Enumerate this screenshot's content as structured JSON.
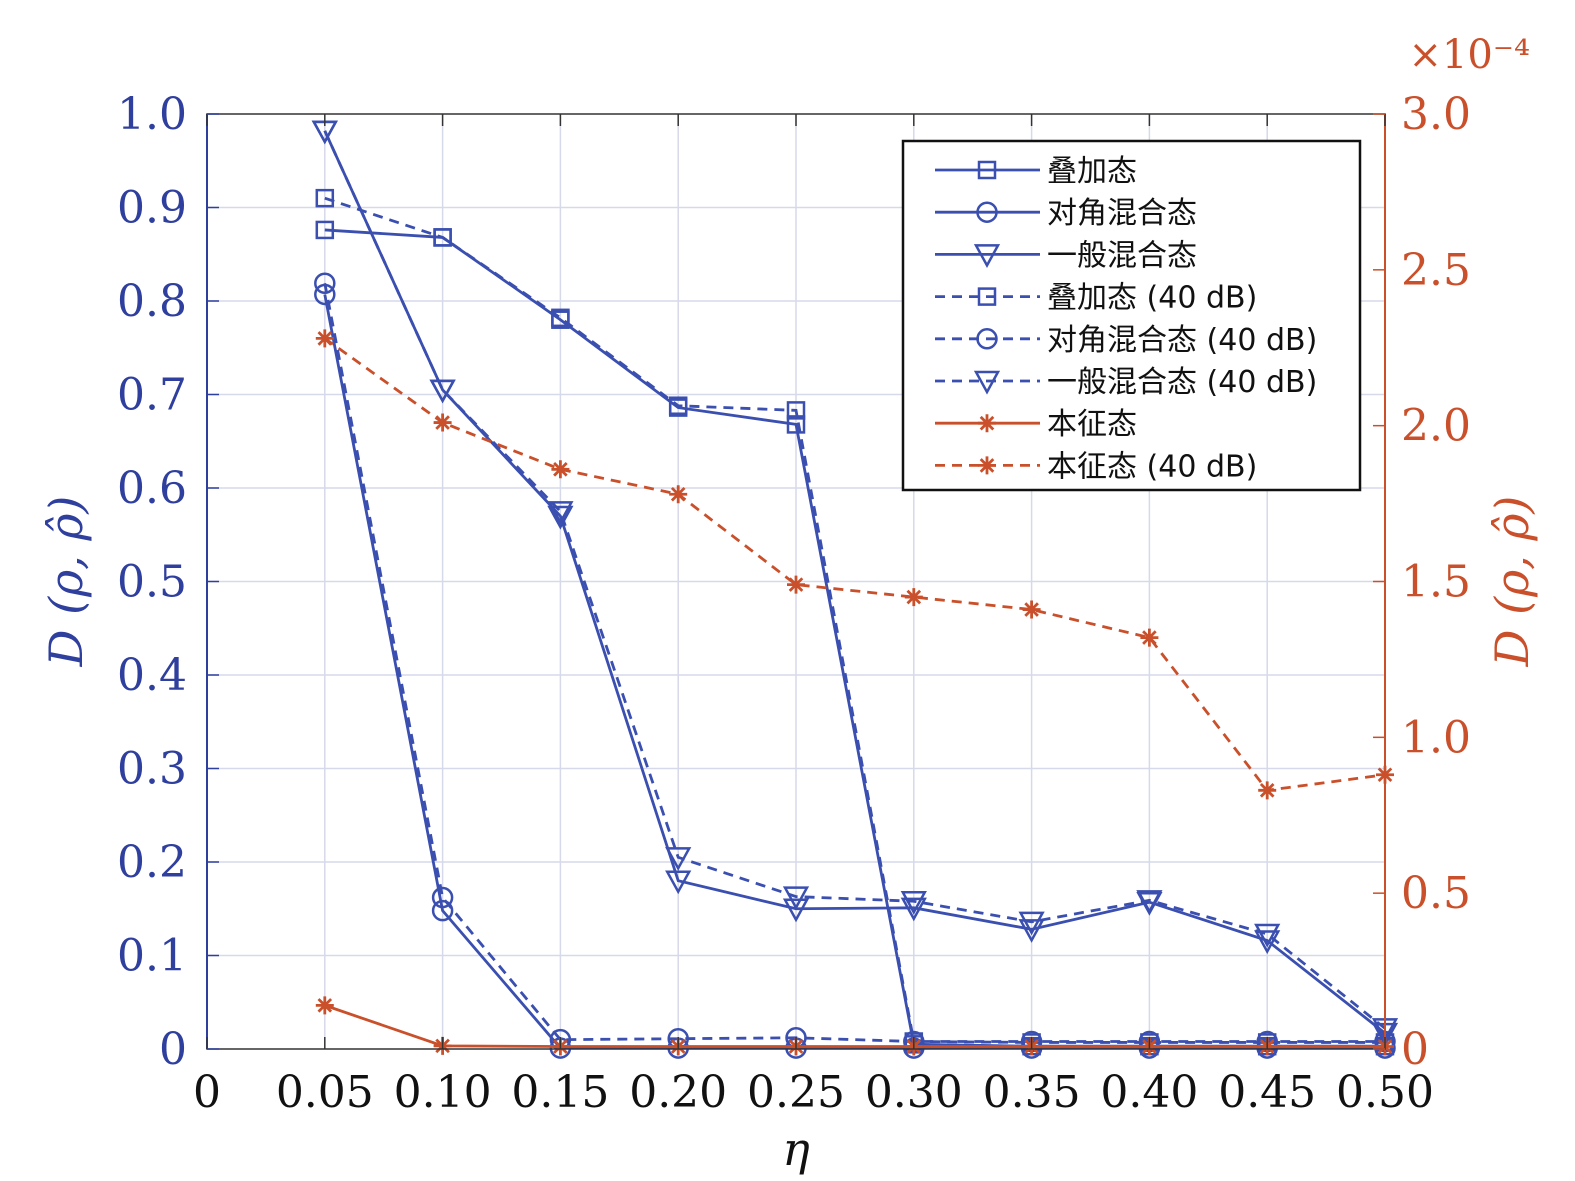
{
  "chart_data": {
    "type": "line",
    "xlabel": "η",
    "ylabel_left": "D (ρ, ρ̂)",
    "ylabel_right": "D (ρ, ρ̂)",
    "right_axis_exponent": "×10⁻⁴",
    "xlim": [
      0,
      0.5
    ],
    "ylim_left": [
      0,
      1.0
    ],
    "ylim_right": [
      0,
      3.0
    ],
    "x_ticks": [
      "0",
      "0.05",
      "0.10",
      "0.15",
      "0.20",
      "0.25",
      "0.30",
      "0.35",
      "0.40",
      "0.45",
      "0.50"
    ],
    "y_ticks_left": [
      "0",
      "0.1",
      "0.2",
      "0.3",
      "0.4",
      "0.5",
      "0.6",
      "0.7",
      "0.8",
      "0.9",
      "1.0"
    ],
    "y_ticks_right": [
      "0",
      "0.5",
      "1.0",
      "1.5",
      "2.0",
      "2.5",
      "3.0"
    ],
    "grid": true,
    "legend_position": "top-right",
    "x": [
      0.05,
      0.1,
      0.15,
      0.2,
      0.25,
      0.3,
      0.35,
      0.4,
      0.45,
      0.5
    ],
    "series": [
      {
        "name": "叠加态",
        "axis": "left",
        "marker": "square",
        "dash": "solid",
        "color": "#3a4fb0",
        "values": [
          0.876,
          0.868,
          0.78,
          0.686,
          0.668,
          0.005,
          0.003,
          0.003,
          0.003,
          0.003
        ]
      },
      {
        "name": "对角混合态",
        "axis": "left",
        "marker": "circle",
        "dash": "solid",
        "color": "#3a4fb0",
        "values": [
          0.807,
          0.148,
          0.001,
          0.001,
          0.001,
          0.001,
          0.001,
          0.001,
          0.001,
          0.001
        ]
      },
      {
        "name": "一般混合态",
        "axis": "left",
        "marker": "triangle-down",
        "dash": "solid",
        "color": "#3a4fb0",
        "values": [
          0.982,
          0.705,
          0.57,
          0.18,
          0.15,
          0.151,
          0.128,
          0.157,
          0.116,
          0.017
        ]
      },
      {
        "name": "叠加态 (40 dB)",
        "axis": "left",
        "marker": "square",
        "dash": "dashed",
        "color": "#3a4fb0",
        "values": [
          0.91,
          0.868,
          0.782,
          0.688,
          0.683,
          0.008,
          0.007,
          0.007,
          0.007,
          0.007
        ]
      },
      {
        "name": "对角混合态 (40 dB)",
        "axis": "left",
        "marker": "circle",
        "dash": "dashed",
        "color": "#3a4fb0",
        "values": [
          0.819,
          0.162,
          0.01,
          0.011,
          0.012,
          0.008,
          0.008,
          0.008,
          0.008,
          0.008
        ]
      },
      {
        "name": "一般混合态 (40 dB)",
        "axis": "left",
        "marker": "triangle-down",
        "dash": "dashed",
        "color": "#3a4fb0",
        "values": [
          0.982,
          0.705,
          0.575,
          0.205,
          0.163,
          0.158,
          0.136,
          0.159,
          0.123,
          0.022
        ]
      },
      {
        "name": "本征态",
        "axis": "right",
        "marker": "asterisk",
        "dash": "solid",
        "color": "#c9502a",
        "values": [
          0.14,
          0.01,
          0.008,
          0.008,
          0.008,
          0.008,
          0.008,
          0.008,
          0.008,
          0.008
        ]
      },
      {
        "name": "本征态 (40 dB)",
        "axis": "right",
        "marker": "asterisk",
        "dash": "dashed",
        "color": "#c9502a",
        "values": [
          2.28,
          2.01,
          1.86,
          1.78,
          1.49,
          1.45,
          1.41,
          1.32,
          0.83,
          0.88
        ]
      }
    ]
  }
}
